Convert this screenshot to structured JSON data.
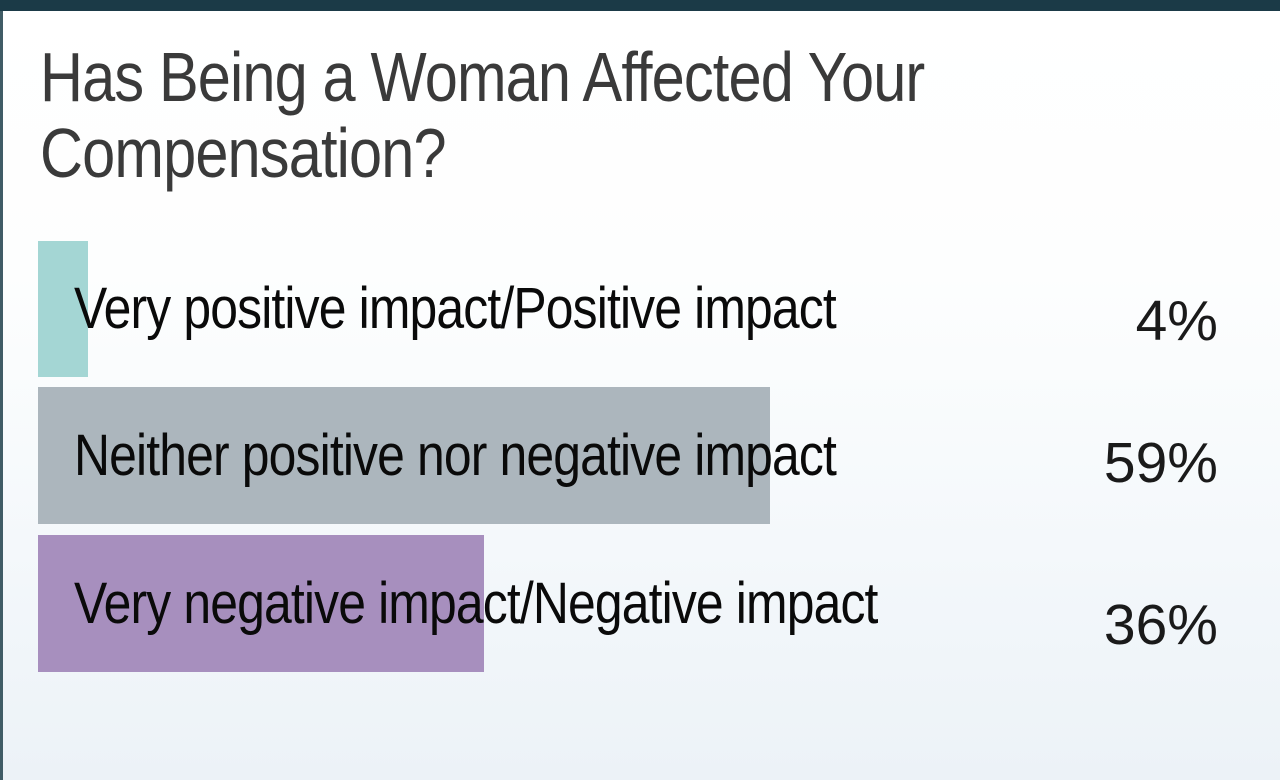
{
  "slide": {
    "title": {
      "line1": "Has Being a Woman Affected Your",
      "line2": "Compensation?"
    },
    "colors": {
      "top_accent_bar": "#1b3a47",
      "left_accent_edge": "#405c66",
      "background_top": "#ffffff",
      "background_bottom": "#ecf2f7",
      "title_text": "#3a3a3a",
      "label_text": "#0a0a0a",
      "percent_text": "#1a1a1a"
    }
  },
  "chart_data": {
    "type": "bar",
    "orientation": "horizontal",
    "title": "Has Being a Woman Affected Your Compensation?",
    "categories": [
      "Very positive impact/Positive impact",
      "Neither positive nor negative impact",
      "Very negative impact/Negative impact"
    ],
    "values": [
      4,
      59,
      36
    ],
    "value_labels": [
      "4%",
      "59%",
      "36%"
    ],
    "bar_colors": [
      "#a4d6d4",
      "#acb6bd",
      "#a78fbe"
    ],
    "xlim": [
      0,
      100
    ],
    "grid": false,
    "legend": false,
    "value_label_position": "right-aligned-outside",
    "category_label_position": "overlapping-bar-start"
  }
}
